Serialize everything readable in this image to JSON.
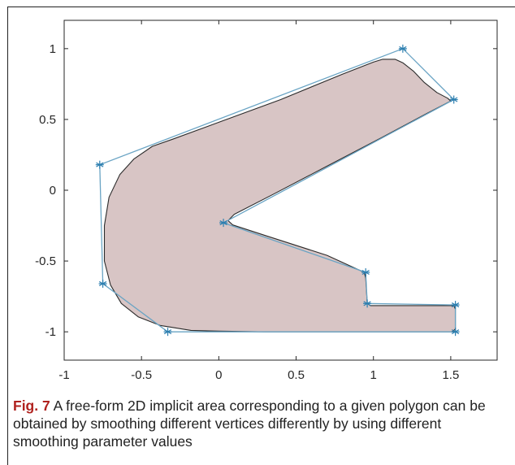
{
  "chart_data": {
    "type": "line",
    "title": "",
    "xlabel": "",
    "ylabel": "",
    "xlim": [
      -1,
      1.8
    ],
    "ylim": [
      -1.2,
      1.2
    ],
    "x_ticks": [
      -1,
      -0.5,
      0,
      0.5,
      1,
      1.5
    ],
    "x_tick_labels": [
      "-1",
      "-0.5",
      "0",
      "0.5",
      "1",
      "1.5"
    ],
    "y_ticks": [
      -1,
      -0.5,
      0,
      0.5,
      1
    ],
    "y_tick_labels": [
      "-1",
      "-0.5",
      "0",
      "0.5",
      "1"
    ],
    "grid": false,
    "series": [
      {
        "role": "control-polygon",
        "marker": "asterisk",
        "color": "#6aa4c4",
        "points": [
          [
            1.19,
            1.0
          ],
          [
            1.52,
            0.64
          ],
          [
            0.03,
            -0.23
          ],
          [
            0.95,
            -0.58
          ],
          [
            0.96,
            -0.8
          ],
          [
            1.53,
            -0.81
          ],
          [
            1.53,
            -1.0
          ],
          [
            -0.33,
            -1.0
          ],
          [
            -0.75,
            -0.66
          ],
          [
            -0.77,
            0.18
          ],
          [
            1.19,
            1.0
          ]
        ]
      },
      {
        "role": "smoothed-implicit-area",
        "fill": "#d8c5c5",
        "stroke": "#2b2b2b",
        "points": [
          [
            1.06,
            0.925
          ],
          [
            1.14,
            0.925
          ],
          [
            1.19,
            0.9
          ],
          [
            1.26,
            0.84
          ],
          [
            1.33,
            0.76
          ],
          [
            1.41,
            0.69
          ],
          [
            1.48,
            0.65
          ],
          [
            1.5,
            0.63
          ],
          [
            1.35,
            0.545
          ],
          [
            1.05,
            0.37
          ],
          [
            0.7,
            0.17
          ],
          [
            0.35,
            -0.03
          ],
          [
            0.1,
            -0.17
          ],
          [
            0.06,
            -0.215
          ],
          [
            0.09,
            -0.245
          ],
          [
            0.3,
            -0.32
          ],
          [
            0.7,
            -0.46
          ],
          [
            0.94,
            -0.58
          ],
          [
            0.95,
            -0.62
          ],
          [
            0.96,
            -0.8
          ],
          [
            0.98,
            -0.815
          ],
          [
            1.52,
            -0.815
          ],
          [
            1.53,
            -0.84
          ],
          [
            1.53,
            -0.98
          ],
          [
            1.51,
            -1.0
          ],
          [
            0.3,
            -1.0
          ],
          [
            0.0,
            -0.995
          ],
          [
            -0.18,
            -0.99
          ],
          [
            -0.38,
            -0.955
          ],
          [
            -0.52,
            -0.895
          ],
          [
            -0.63,
            -0.8
          ],
          [
            -0.7,
            -0.67
          ],
          [
            -0.74,
            -0.5
          ],
          [
            -0.74,
            -0.25
          ],
          [
            -0.71,
            -0.05
          ],
          [
            -0.64,
            0.11
          ],
          [
            -0.55,
            0.22
          ],
          [
            -0.43,
            0.31
          ],
          [
            -0.3,
            0.36
          ],
          [
            0.0,
            0.48
          ],
          [
            0.4,
            0.64
          ],
          [
            0.8,
            0.82
          ],
          [
            1.0,
            0.905
          ],
          [
            1.06,
            0.925
          ]
        ]
      }
    ]
  },
  "caption": {
    "label": "Fig. 7",
    "text": " A free-form 2D implicit area corresponding to a given polygon can be obtained by smoothing different vertices differently by using different smoothing parameter values"
  }
}
